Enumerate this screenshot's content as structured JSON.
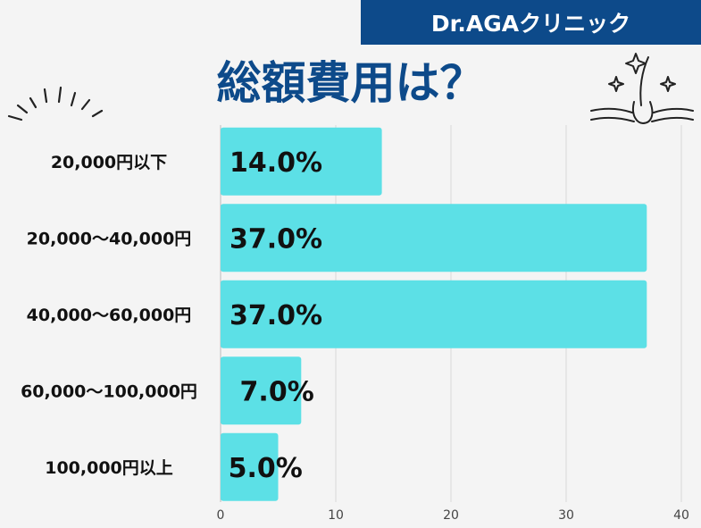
{
  "brand": "Dr.AGAクリニック",
  "title": "総額費用は？",
  "colors": {
    "banner": "#0d4a8a",
    "title": "#0d4a8a",
    "bar": "#5ce0e6",
    "grid": "#d8d8d8"
  },
  "icons": {
    "left": "sparkle-lines-icon",
    "right": "hair-follicle-icon"
  },
  "chart_data": {
    "type": "bar",
    "orientation": "horizontal",
    "categories": [
      "20,000円以下",
      "20,000〜40,000円",
      "40,000〜60,000円",
      "60,000〜100,000円",
      "100,000円以上"
    ],
    "values": [
      14.0,
      37.0,
      37.0,
      7.0,
      5.0
    ],
    "value_labels": [
      "14.0%",
      "37.0%",
      "37.0%",
      "7.0%",
      "5.0%"
    ],
    "xlim": [
      0,
      40
    ],
    "xticks": [
      0,
      10,
      20,
      30,
      40
    ],
    "grid": true
  }
}
